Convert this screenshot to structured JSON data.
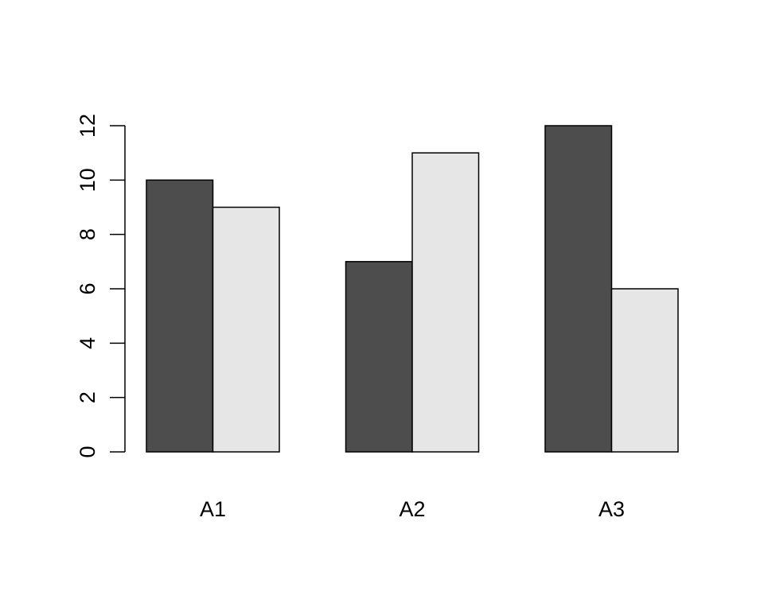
{
  "chart_data": {
    "type": "bar",
    "categories": [
      "A1",
      "A2",
      "A3"
    ],
    "series": [
      {
        "values": [
          10,
          7,
          12
        ],
        "color": "#4d4d4d"
      },
      {
        "values": [
          9,
          11,
          6
        ],
        "color": "#e6e6e6"
      }
    ],
    "ylim": [
      0,
      12
    ],
    "yticks": [
      "0",
      "2",
      "4",
      "6",
      "8",
      "10",
      "12"
    ],
    "grid": false,
    "legend": "none"
  }
}
